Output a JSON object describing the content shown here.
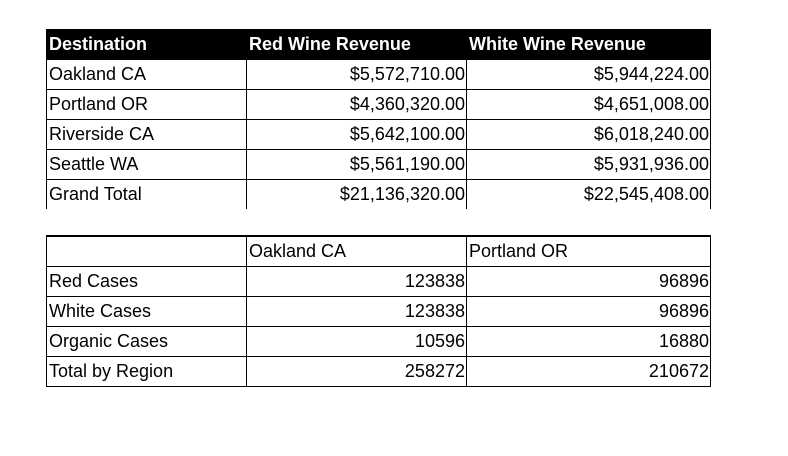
{
  "revenue_table": {
    "headers": [
      "Destination",
      "Red Wine Revenue",
      "White Wine Revenue"
    ],
    "rows": [
      {
        "destination": "Oakland CA",
        "red": "$5,572,710.00",
        "white": "$5,944,224.00"
      },
      {
        "destination": "Portland OR",
        "red": "$4,360,320.00",
        "white": "$4,651,008.00"
      },
      {
        "destination": "Riverside CA",
        "red": "$5,642,100.00",
        "white": "$6,018,240.00"
      },
      {
        "destination": "Seattle WA",
        "red": "$5,561,190.00",
        "white": "$5,931,936.00"
      },
      {
        "destination": "Grand Total",
        "red": "$21,136,320.00",
        "white": "$22,545,408.00"
      }
    ]
  },
  "cases_table": {
    "headers": [
      "",
      "Oakland CA",
      "Portland OR"
    ],
    "rows": [
      {
        "label": "Red Cases",
        "oakland": "123838",
        "portland": "96896"
      },
      {
        "label": "White Cases",
        "oakland": "123838",
        "portland": "96896"
      },
      {
        "label": "Organic Cases",
        "oakland": "10596",
        "portland": "16880"
      },
      {
        "label": "Total by Region",
        "oakland": "258272",
        "portland": "210672"
      }
    ]
  }
}
